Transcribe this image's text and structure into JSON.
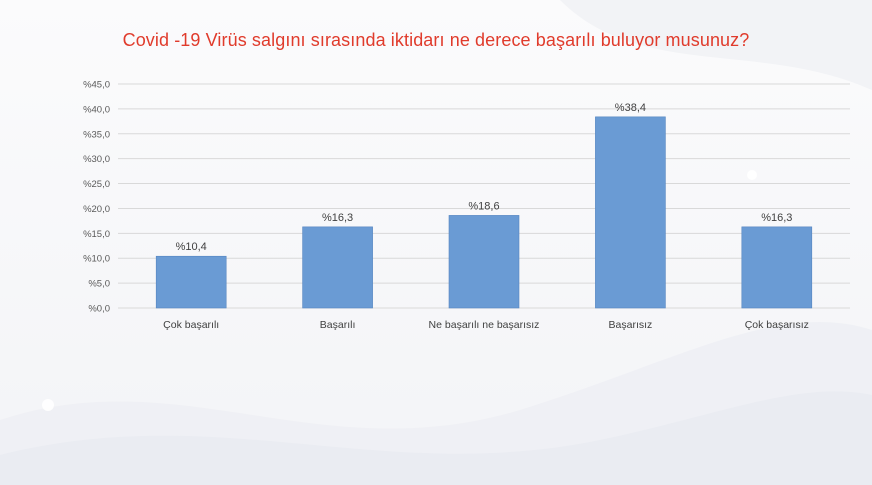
{
  "chart_data": {
    "type": "bar",
    "title": "Covid -19 Virüs salgını sırasında iktidarı ne derece başarılı buluyor musunuz?",
    "xlabel": "",
    "ylabel": "",
    "categories": [
      "Çok başarılı",
      "Başarılı",
      "Ne başarılı ne başarısız",
      "Başarısız",
      "Çok başarısız"
    ],
    "values": [
      10.4,
      16.3,
      18.6,
      38.4,
      16.3
    ],
    "value_labels": [
      "%10,4",
      "%16,3",
      "%18,6",
      "%38,4",
      "%16,3"
    ],
    "ylim": [
      0,
      45
    ],
    "yticks": [
      0,
      5,
      10,
      15,
      20,
      25,
      30,
      35,
      40,
      45
    ],
    "ytick_labels": [
      "%0,0",
      "%5,0",
      "%10,0",
      "%15,0",
      "%20,0",
      "%25,0",
      "%30,0",
      "%35,0",
      "%40,0",
      "%45,0"
    ],
    "grid": true,
    "legend": "none",
    "colors": {
      "bar": "#6a9bd4",
      "bar_edge": "#5585c0",
      "grid": "#d9d9d9",
      "title": "#e03b2c"
    }
  }
}
